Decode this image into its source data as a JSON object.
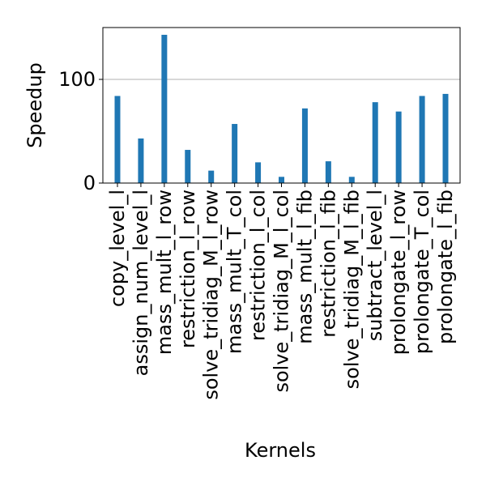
{
  "chart_data": {
    "type": "bar",
    "xlabel": "Kernels",
    "ylabel": "Speedup",
    "ylim": [
      0,
      150
    ],
    "yticks": [
      0,
      100
    ],
    "grid": "horizontal",
    "bar_color": "#1f77b4",
    "grid_color": "#b0b0b0",
    "categories": [
      "copy_level_l",
      "assign_num_level_l",
      "mass_mult_l_row",
      "restriction_l_row",
      "solve_tridiag_M_l_row",
      "mass_mult_T_col",
      "restriction_l_col",
      "solve_tridiag_M_l_col",
      "mass_mult_l_fib",
      "restriction_l_fib",
      "solve_tridiag_M_l_fib",
      "subtract_level_l",
      "prolongate_l_row",
      "prolongate_T_col",
      "prolongate_l_fib"
    ],
    "values": [
      84,
      43,
      143,
      32,
      12,
      57,
      20,
      6,
      72,
      21,
      6,
      78,
      69,
      84,
      86
    ]
  }
}
